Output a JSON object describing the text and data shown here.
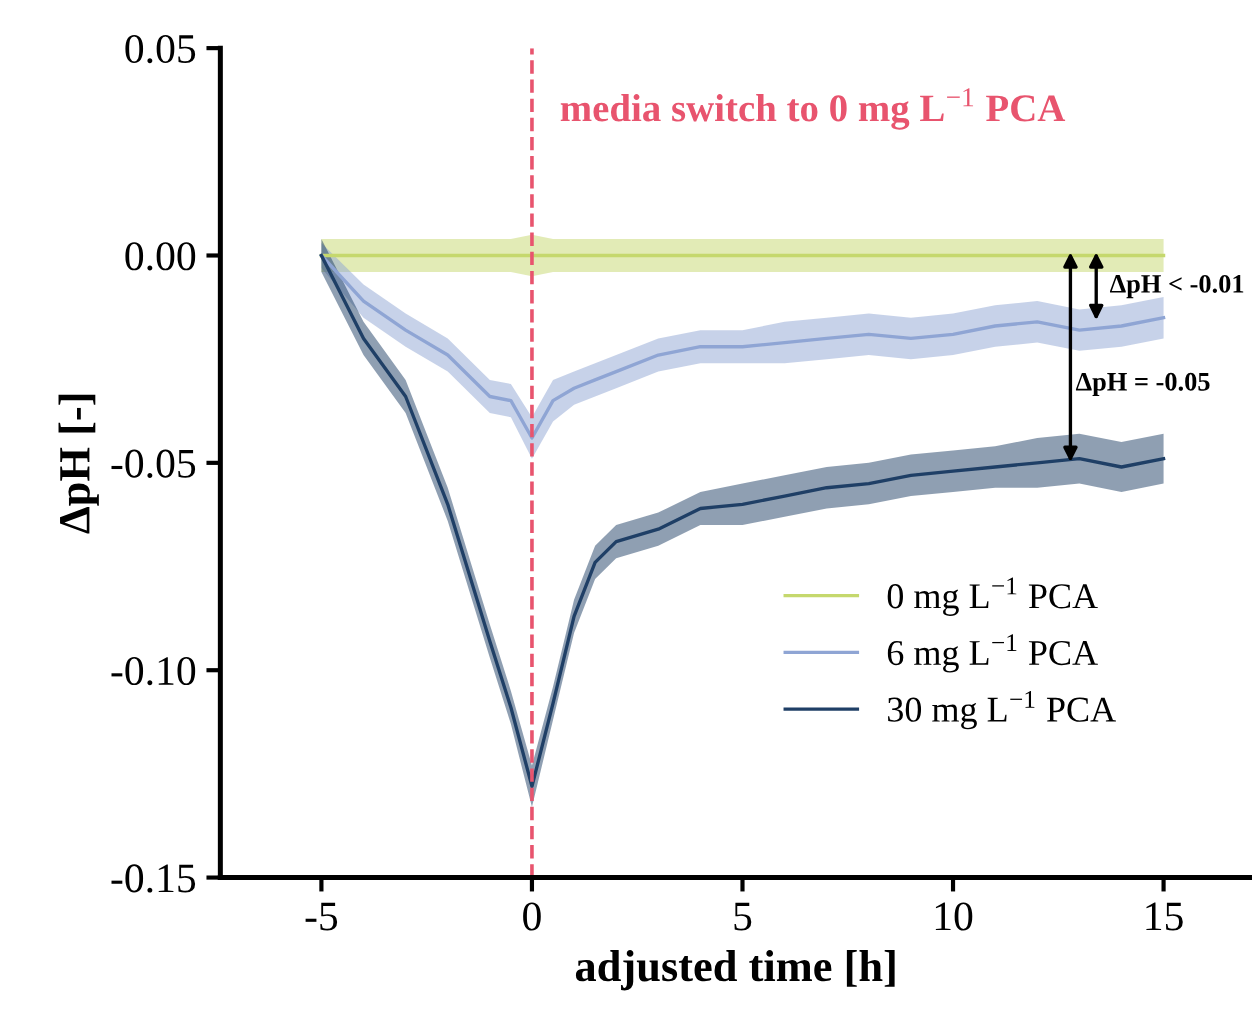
{
  "chart_data": {
    "type": "line",
    "xlabel": "adjusted time [h]",
    "ylabel": "ΔpH [-]",
    "xlim": [
      -7.4,
      17.1
    ],
    "ylim": [
      -0.15,
      0.05
    ],
    "xticks": [
      -5,
      0,
      5,
      10,
      15
    ],
    "yticks": [
      {
        "value": -0.15,
        "label": "-0.15"
      },
      {
        "value": -0.1,
        "label": "-0.10"
      },
      {
        "value": -0.05,
        "label": "-0.05"
      },
      {
        "value": 0,
        "label": "0.00"
      },
      {
        "value": 0.05,
        "label": "0.05"
      }
    ],
    "grid": false,
    "legend": "right",
    "marker": "none",
    "line_style": "solid",
    "x": [
      -5,
      -4,
      -3,
      -2,
      -1,
      -0.5,
      0,
      0.5,
      1,
      1.5,
      2,
      3,
      4,
      5,
      6,
      7,
      8,
      9,
      10,
      11,
      12,
      13,
      14,
      15
    ],
    "series": [
      {
        "name": "0 mg L$^{−1}$ PCA",
        "color": "#c5d86d",
        "values": [
          0,
          0,
          0,
          0,
          0,
          0,
          0,
          0,
          0,
          0,
          0,
          0,
          0,
          0,
          0,
          0,
          0,
          0,
          0,
          0,
          0,
          0,
          0,
          0
        ],
        "lower": [
          -0.004,
          -0.004,
          -0.004,
          -0.004,
          -0.004,
          -0.004,
          -0.005,
          -0.004,
          -0.004,
          -0.004,
          -0.004,
          -0.004,
          -0.004,
          -0.004,
          -0.004,
          -0.004,
          -0.004,
          -0.004,
          -0.004,
          -0.004,
          -0.004,
          -0.004,
          -0.004,
          -0.004
        ],
        "upper": [
          0.004,
          0.004,
          0.004,
          0.004,
          0.004,
          0.004,
          0.005,
          0.004,
          0.004,
          0.004,
          0.004,
          0.004,
          0.004,
          0.004,
          0.004,
          0.004,
          0.004,
          0.004,
          0.004,
          0.004,
          0.004,
          0.004,
          0.004,
          0.004
        ]
      },
      {
        "name": "6 mg L$^{−1}$ PCA",
        "color": "#8fa5d4",
        "values": [
          0,
          -0.011,
          -0.018,
          -0.024,
          -0.034,
          -0.035,
          -0.044,
          -0.035,
          -0.032,
          -0.03,
          -0.028,
          -0.024,
          -0.022,
          -0.022,
          -0.021,
          -0.02,
          -0.019,
          -0.02,
          -0.019,
          -0.017,
          -0.016,
          -0.018,
          -0.017,
          -0.015
        ],
        "lower": [
          -0.003,
          -0.015,
          -0.022,
          -0.028,
          -0.038,
          -0.039,
          -0.049,
          -0.04,
          -0.036,
          -0.034,
          -0.032,
          -0.028,
          -0.026,
          -0.026,
          -0.026,
          -0.025,
          -0.024,
          -0.025,
          -0.024,
          -0.022,
          -0.021,
          -0.023,
          -0.022,
          -0.02
        ],
        "upper": [
          0.003,
          -0.007,
          -0.014,
          -0.02,
          -0.03,
          -0.031,
          -0.039,
          -0.03,
          -0.028,
          -0.026,
          -0.024,
          -0.02,
          -0.018,
          -0.018,
          -0.016,
          -0.015,
          -0.014,
          -0.015,
          -0.014,
          -0.012,
          -0.011,
          -0.013,
          -0.012,
          -0.01
        ]
      },
      {
        "name": "30 mg L$^{−1}$ PCA",
        "color": "#1f3f66",
        "values": [
          0,
          -0.02,
          -0.034,
          -0.06,
          -0.093,
          -0.109,
          -0.128,
          -0.108,
          -0.087,
          -0.074,
          -0.069,
          -0.066,
          -0.061,
          -0.06,
          -0.058,
          -0.056,
          -0.055,
          -0.053,
          -0.052,
          -0.051,
          -0.05,
          -0.049,
          -0.051,
          -0.049
        ],
        "lower": [
          -0.004,
          -0.024,
          -0.038,
          -0.064,
          -0.097,
          -0.113,
          -0.133,
          -0.112,
          -0.091,
          -0.078,
          -0.073,
          -0.07,
          -0.065,
          -0.065,
          -0.063,
          -0.061,
          -0.06,
          -0.058,
          -0.057,
          -0.056,
          -0.056,
          -0.055,
          -0.057,
          -0.055
        ],
        "upper": [
          0.004,
          -0.016,
          -0.03,
          -0.056,
          -0.089,
          -0.105,
          -0.123,
          -0.104,
          -0.083,
          -0.07,
          -0.065,
          -0.062,
          -0.057,
          -0.055,
          -0.053,
          -0.051,
          -0.05,
          -0.048,
          -0.047,
          -0.046,
          -0.044,
          -0.043,
          -0.045,
          -0.043
        ]
      }
    ],
    "ref_lines": [
      {
        "axis": "x",
        "value": 0,
        "label": "media switch to 0 mg L$^{−1}$ PCA",
        "color": "#e8546e",
        "line_style": "dashed"
      }
    ],
    "annotations": [
      "ΔpH = -0.05",
      "ΔpH < -0.01"
    ]
  }
}
